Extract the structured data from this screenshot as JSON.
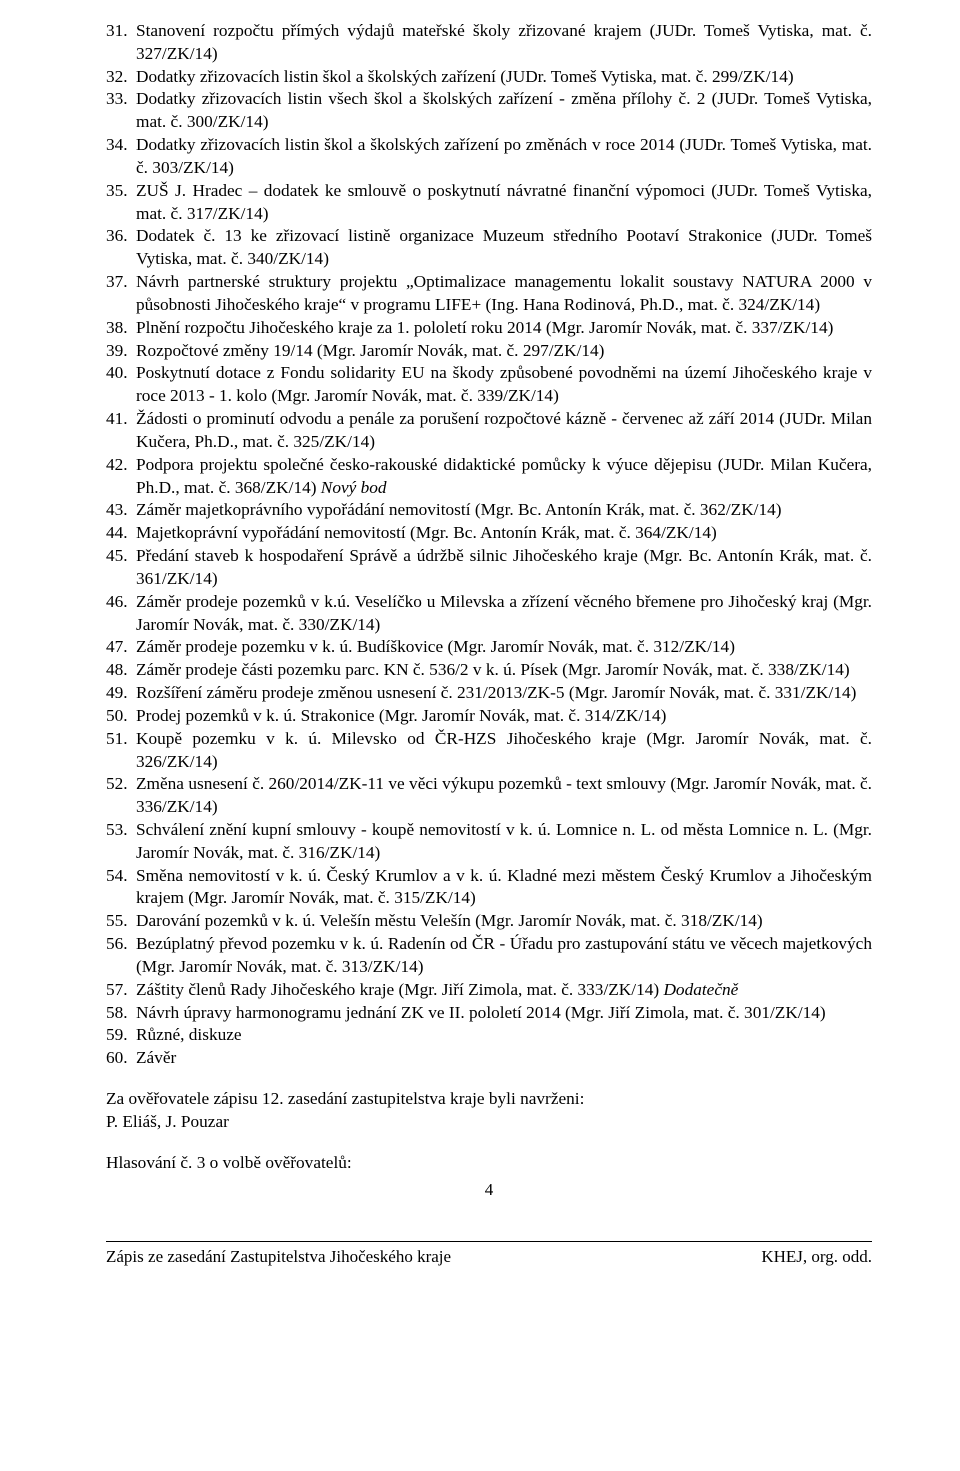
{
  "items": [
    {
      "n": "31.",
      "t": "Stanovení rozpočtu přímých výdajů mateřské školy zřizované krajem (JUDr. Tomeš Vytiska, mat. č. 327/ZK/14)"
    },
    {
      "n": "32.",
      "t": "Dodatky zřizovacích listin škol a školských zařízení (JUDr. Tomeš Vytiska, mat. č. 299/ZK/14)"
    },
    {
      "n": "33.",
      "t": "Dodatky zřizovacích listin všech škol a školských zařízení - změna přílohy č. 2 (JUDr. Tomeš Vytiska, mat. č. 300/ZK/14)"
    },
    {
      "n": "34.",
      "t": "Dodatky zřizovacích listin škol a školských zařízení po změnách v roce 2014 (JUDr. Tomeš Vytiska, mat. č. 303/ZK/14)"
    },
    {
      "n": "35.",
      "t": "ZUŠ J. Hradec – dodatek ke smlouvě o poskytnutí návratné finanční výpomoci (JUDr. Tomeš Vytiska, mat. č. 317/ZK/14)"
    },
    {
      "n": "36.",
      "t": "Dodatek č. 13 ke zřizovací listině organizace Muzeum středního Pootaví Strakonice (JUDr. Tomeš Vytiska, mat. č. 340/ZK/14)"
    },
    {
      "n": "37.",
      "t": "Návrh partnerské struktury projektu „Optimalizace managementu lokalit soustavy NATURA 2000 v působnosti Jihočeského kraje“ v programu LIFE+ (Ing. Hana Rodinová, Ph.D., mat. č. 324/ZK/14)"
    },
    {
      "n": "38.",
      "t": "Plnění rozpočtu Jihočeského kraje za 1. pololetí roku 2014 (Mgr. Jaromír Novák, mat. č. 337/ZK/14)"
    },
    {
      "n": "39.",
      "t": "Rozpočtové změny 19/14 (Mgr. Jaromír Novák, mat. č. 297/ZK/14)"
    },
    {
      "n": "40.",
      "t": "Poskytnutí dotace z Fondu solidarity EU na škody způsobené povodněmi na území Jihočeského kraje v roce 2013 - 1. kolo (Mgr. Jaromír Novák, mat. č. 339/ZK/14)"
    },
    {
      "n": "41.",
      "t": "Žádosti o prominutí odvodu a penále za porušení rozpočtové kázně - červenec až září 2014 (JUDr. Milan Kučera, Ph.D., mat. č. 325/ZK/14)"
    },
    {
      "n": "42.",
      "t": "Podpora projektu společné česko-rakouské didaktické pomůcky k výuce dějepisu (JUDr. Milan Kučera, Ph.D., mat. č. 368/ZK/14) ",
      "tail_italic": "Nový bod"
    },
    {
      "n": "43.",
      "t": "Záměr majetkoprávního vypořádání nemovitostí (Mgr. Bc. Antonín Krák, mat. č. 362/ZK/14)"
    },
    {
      "n": "44.",
      "t": "Majetkoprávní vypořádání nemovitostí (Mgr. Bc. Antonín Krák, mat. č. 364/ZK/14)"
    },
    {
      "n": "45.",
      "t": "Předání staveb k hospodaření Správě a údržbě silnic Jihočeského kraje (Mgr. Bc. Antonín Krák, mat. č. 361/ZK/14)"
    },
    {
      "n": "46.",
      "t": "Záměr prodeje pozemků v k.ú. Veselíčko u Milevska a zřízení věcného břemene pro Jihočeský kraj (Mgr. Jaromír Novák, mat. č. 330/ZK/14)"
    },
    {
      "n": "47.",
      "t": "Záměr prodeje pozemku v k. ú. Budíškovice (Mgr. Jaromír Novák, mat. č. 312/ZK/14)"
    },
    {
      "n": "48.",
      "t": "Záměr prodeje části pozemku parc. KN č. 536/2 v k. ú. Písek (Mgr. Jaromír Novák, mat. č. 338/ZK/14)"
    },
    {
      "n": "49.",
      "t": "Rozšíření záměru prodeje změnou usnesení č. 231/2013/ZK-5 (Mgr. Jaromír Novák, mat. č. 331/ZK/14)"
    },
    {
      "n": "50.",
      "t": "Prodej pozemků v k. ú. Strakonice (Mgr. Jaromír Novák, mat. č. 314/ZK/14)"
    },
    {
      "n": "51.",
      "t": "Koupě pozemku v k. ú. Milevsko od ČR-HZS Jihočeského kraje (Mgr. Jaromír Novák, mat. č. 326/ZK/14)"
    },
    {
      "n": "52.",
      "t": "Změna usnesení č. 260/2014/ZK-11 ve věci výkupu pozemků - text smlouvy (Mgr. Jaromír Novák, mat. č. 336/ZK/14)"
    },
    {
      "n": "53.",
      "t": "Schválení znění kupní smlouvy - koupě nemovitostí v k. ú. Lomnice n. L. od města Lomnice n. L. (Mgr. Jaromír Novák, mat. č. 316/ZK/14)"
    },
    {
      "n": "54.",
      "t": "Směna nemovitostí v k. ú. Český Krumlov a v k. ú. Kladné mezi městem Český Krumlov a Jihočeským krajem (Mgr. Jaromír Novák, mat. č. 315/ZK/14)"
    },
    {
      "n": "55.",
      "t": "Darování pozemků v k. ú. Velešín městu Velešín (Mgr. Jaromír Novák, mat. č. 318/ZK/14)"
    },
    {
      "n": "56.",
      "t": "Bezúplatný převod pozemku v k. ú. Radenín od ČR - Úřadu pro zastupování státu ve věcech majetkových (Mgr. Jaromír Novák, mat. č. 313/ZK/14)"
    },
    {
      "n": "57.",
      "t": "Záštity členů Rady Jihočeského kraje (Mgr. Jiří Zimola, mat. č. 333/ZK/14) ",
      "tail_italic": "Dodatečně"
    },
    {
      "n": "58.",
      "t": "Návrh úpravy harmonogramu jednání ZK ve II. pololetí 2014 (Mgr. Jiří Zimola, mat. č. 301/ZK/14)"
    },
    {
      "n": "59.",
      "t": "Různé, diskuze"
    },
    {
      "n": "60.",
      "t": "Závěr"
    }
  ],
  "verifiers_intro": "Za ověřovatele zápisu 12. zasedání zastupitelstva kraje byli navrženi:",
  "verifiers_names": "P. Eliáš, J. Pouzar",
  "vote_line": "Hlasování č. 3 o volbě ověřovatelů:",
  "page_number": "4",
  "footer_left": "Zápis ze zasedání Zastupitelstva Jihočeského kraje",
  "footer_right": "KHEJ, org. odd."
}
